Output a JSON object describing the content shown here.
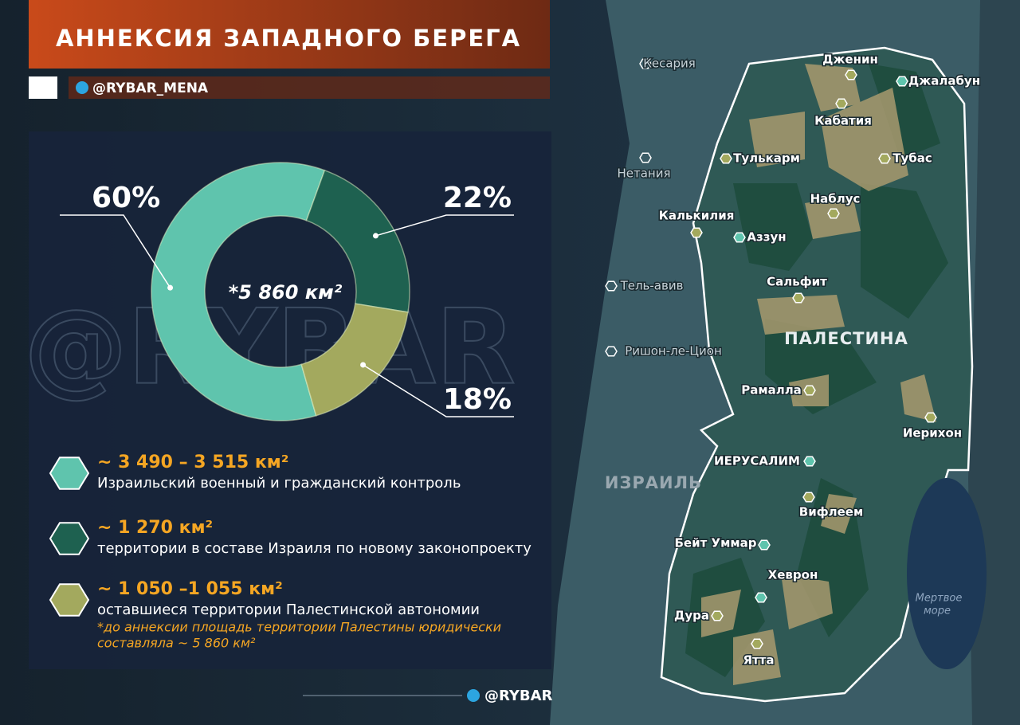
{
  "title": "АННЕКСИЯ ЗАПАДНОГО БЕРЕГА",
  "channel": "@RYBAR_MENA",
  "watermark": "@RYBAR",
  "footer": "@RYBAR",
  "chart_data": {
    "type": "donut",
    "center_label": "*5 860 км²",
    "values": [
      60,
      22,
      18
    ],
    "value_labels": [
      "60%",
      "22%",
      "18%"
    ],
    "colors": [
      "#5fc4ad",
      "#1e6150",
      "#a3a95e"
    ],
    "legend": [
      {
        "area": "~ 3 490 – 3 515 км²",
        "description": "Израильский военный и гражданский контроль"
      },
      {
        "area": "~ 1 270 км²",
        "description": "территории в составе Израиля по новому законопроекту"
      },
      {
        "area": "~ 1 050 –1 055 км²",
        "description": "оставшиеся территории Палестинской автономии"
      }
    ],
    "footnote": [
      "*до аннексии площадь территории Палестины юридически",
      "составляла ~ 5 860 км²"
    ]
  },
  "map": {
    "labels": [
      "Кесария",
      "Дженин",
      "Джалабун",
      "Кабатия",
      "Тулькарм",
      "Тубас",
      "Нетания",
      "Наблус",
      "Калькилия",
      "Аззун",
      "Сальфит",
      "Тель-авив",
      "Ришон-ле-Цион",
      "Рамалла",
      "Иерихон",
      "ИЕРУСАЛИМ",
      "Вифлеем",
      "Бейт Уммар",
      "Хеврон",
      "Дура",
      "Ятта"
    ],
    "regions": [
      "ПАЛЕСТИНА",
      "ИЗРАИЛЬ"
    ],
    "dead_sea": [
      "Мертвое",
      "море"
    ]
  }
}
